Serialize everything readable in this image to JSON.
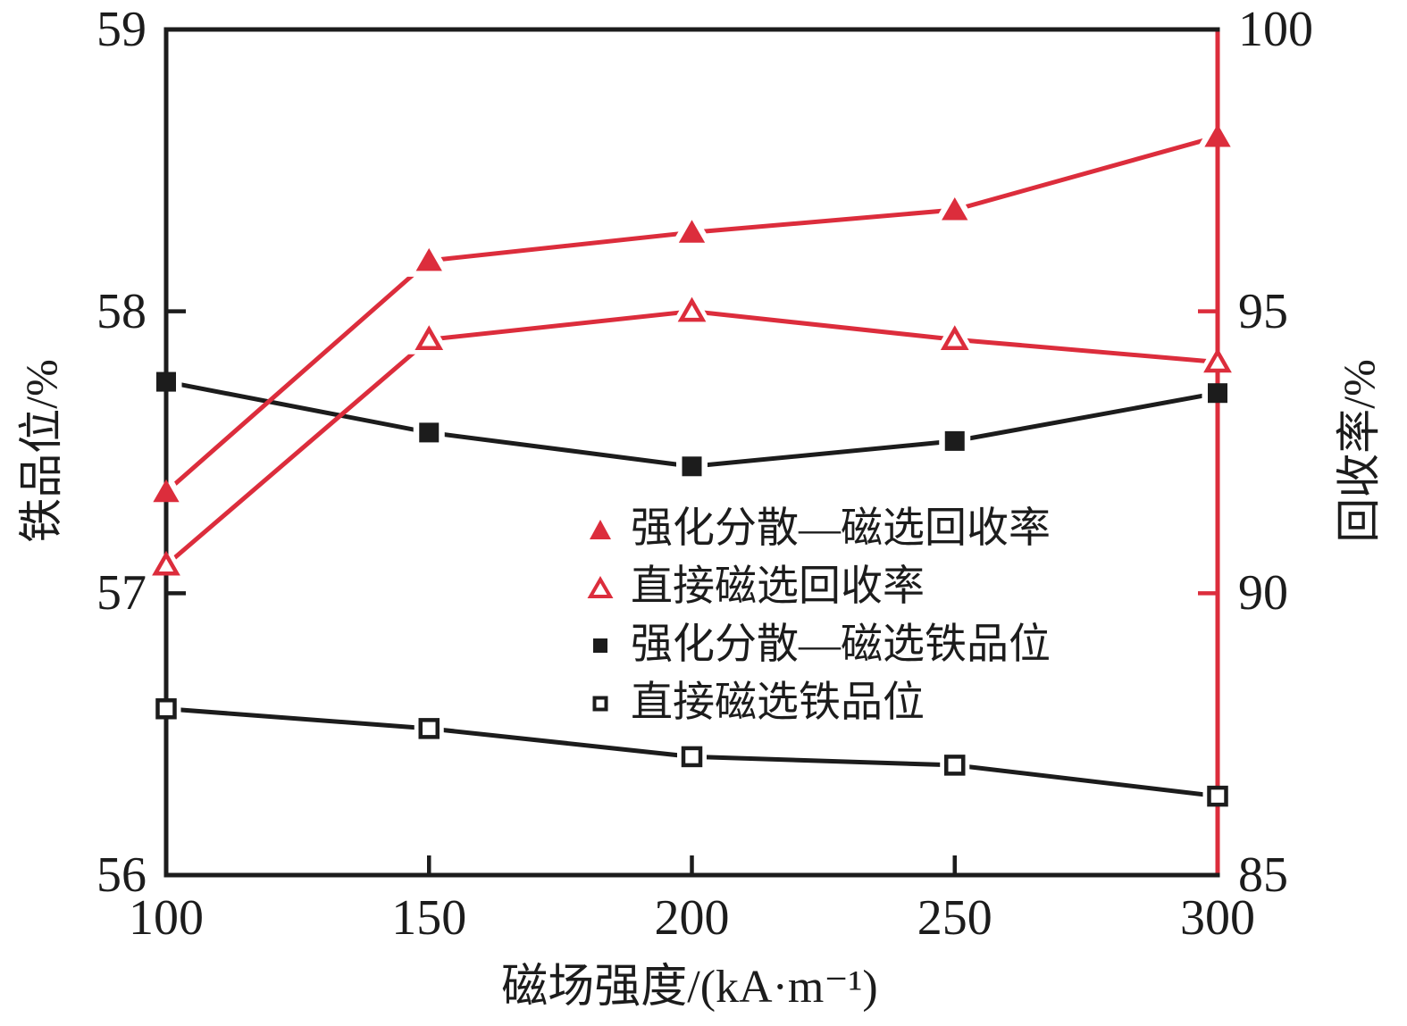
{
  "figure": {
    "x_axis": {
      "title": "磁场强度/(kA·m⁻¹)",
      "ticks": [
        100,
        150,
        200,
        250,
        300
      ]
    },
    "left_axis": {
      "title": "铁品位/%",
      "ticks": [
        59,
        58,
        57,
        56
      ]
    },
    "right_axis": {
      "title": "回收率/%",
      "ticks": [
        100,
        95,
        90,
        85
      ]
    }
  },
  "chart_data": {
    "type": "line",
    "x": [
      100,
      150,
      200,
      250,
      300
    ],
    "xlabel": "磁场强度/(kA·m⁻¹)",
    "left_ylabel": "铁品位/%",
    "right_ylabel": "回收率/%",
    "xlim": [
      100,
      300
    ],
    "left_ylim": [
      56,
      59
    ],
    "right_ylim": [
      85,
      100
    ],
    "grid": false,
    "legend_position": "inside center-right",
    "colors": {
      "red": "#dc2d3c",
      "black": "#1c1c1c"
    },
    "series": [
      {
        "name": "强化分散—磁选回收率",
        "axis": "right",
        "marker": "triangle-filled",
        "color": "#dc2d3c",
        "values": [
          91.8,
          95.9,
          96.4,
          96.8,
          98.1
        ]
      },
      {
        "name": "直接磁选回收率",
        "axis": "right",
        "marker": "triangle-open",
        "color": "#dc2d3c",
        "values": [
          90.5,
          94.5,
          95.0,
          94.5,
          94.1
        ]
      },
      {
        "name": "强化分散—磁选铁品位",
        "axis": "left",
        "marker": "square-filled",
        "color": "#1c1c1c",
        "values": [
          57.75,
          57.57,
          57.45,
          57.54,
          57.71
        ]
      },
      {
        "name": "直接磁选铁品位",
        "axis": "left",
        "marker": "square-open",
        "color": "#1c1c1c",
        "values": [
          56.59,
          56.52,
          56.42,
          56.39,
          56.28
        ]
      }
    ]
  }
}
